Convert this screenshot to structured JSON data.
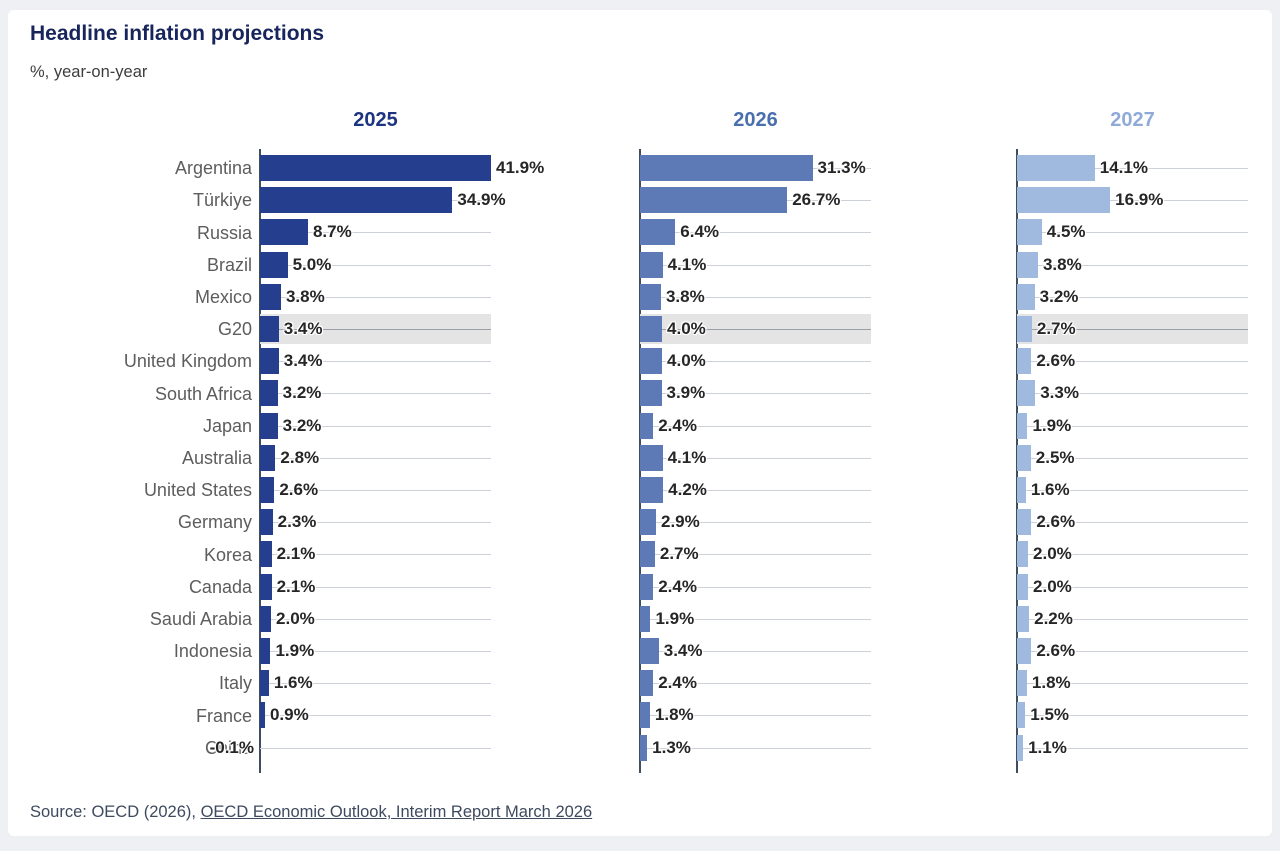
{
  "page": {
    "title": "Headline inflation projections",
    "subtitle": "%, year-on-year"
  },
  "footer": {
    "prefix": "Source: OECD (2026), ",
    "link_text": "OECD Economic Outlook, Interim Report March 2026"
  },
  "chart_data": {
    "type": "bar",
    "orientation": "horizontal",
    "value_suffix": "%",
    "xmax": 41.9,
    "grid": true,
    "highlight_category": "G20",
    "highlight_band_color": "#e4e4e4",
    "categories": [
      "Argentina",
      "Türkiye",
      "Russia",
      "Brazil",
      "Mexico",
      "G20",
      "United Kingdom",
      "South Africa",
      "Japan",
      "Australia",
      "United States",
      "Germany",
      "Korea",
      "Canada",
      "Saudi Arabia",
      "Indonesia",
      "Italy",
      "France",
      "China"
    ],
    "series": [
      {
        "name": "2025",
        "bar_color": "#253e8e",
        "header_color": "#1d3480",
        "values": [
          41.9,
          34.9,
          8.7,
          5.0,
          3.8,
          3.4,
          3.4,
          3.2,
          3.2,
          2.8,
          2.6,
          2.3,
          2.1,
          2.1,
          2.0,
          1.9,
          1.6,
          0.9,
          -0.1
        ]
      },
      {
        "name": "2026",
        "bar_color": "#5d7ab7",
        "header_color": "#4a6fad",
        "values": [
          31.3,
          26.7,
          6.4,
          4.1,
          3.8,
          4.0,
          4.0,
          3.9,
          2.4,
          4.1,
          4.2,
          2.9,
          2.7,
          2.4,
          1.9,
          3.4,
          2.4,
          1.8,
          1.3
        ]
      },
      {
        "name": "2027",
        "bar_color": "#a0badf",
        "header_color": "#90aad8",
        "values": [
          14.1,
          16.9,
          4.5,
          3.8,
          3.2,
          2.7,
          2.6,
          3.3,
          1.9,
          2.5,
          1.6,
          2.6,
          2.0,
          2.0,
          2.2,
          2.6,
          1.8,
          1.5,
          1.1
        ]
      }
    ]
  }
}
